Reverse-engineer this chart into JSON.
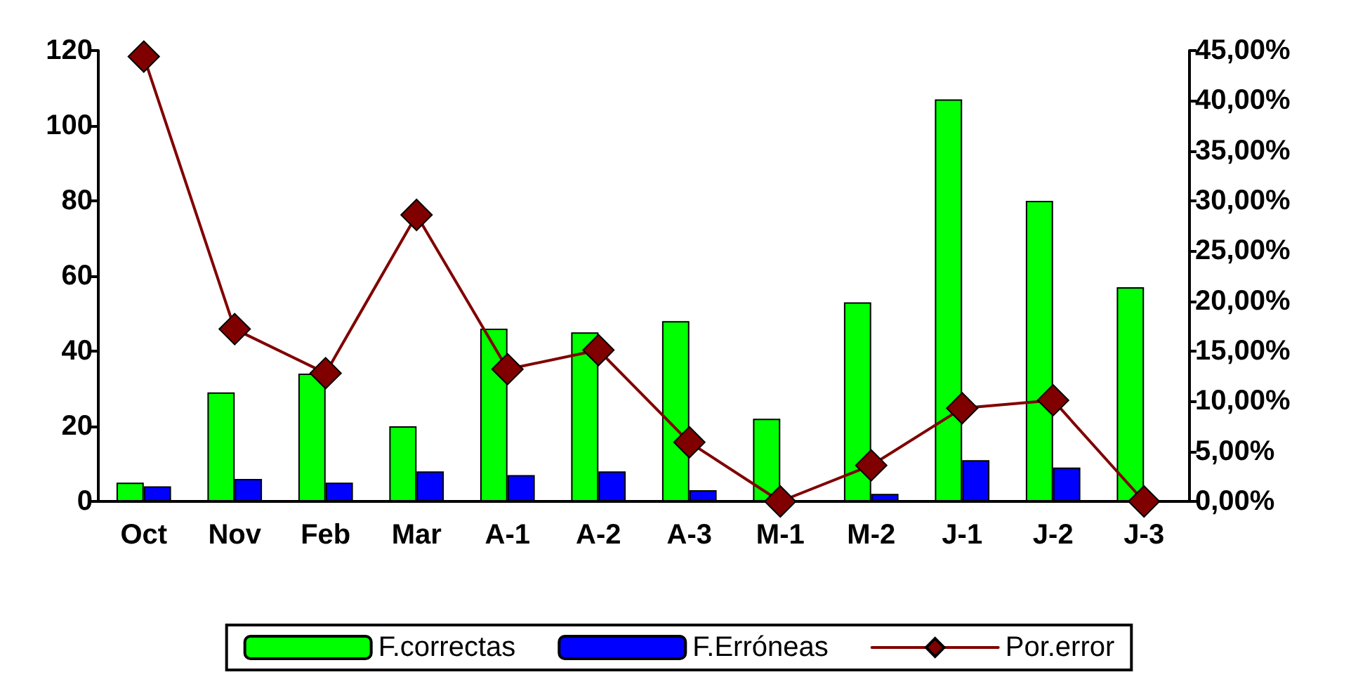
{
  "chart_data": {
    "type": "bar",
    "categories": [
      "Oct",
      "Nov",
      "Feb",
      "Mar",
      "A-1",
      "A-2",
      "A-3",
      "M-1",
      "M-2",
      "J-1",
      "J-2",
      "J-3"
    ],
    "series": [
      {
        "name": "F.correctas",
        "color": "#00ff00",
        "values": [
          5,
          29,
          34,
          20,
          46,
          45,
          48,
          22,
          53,
          107,
          80,
          57
        ]
      },
      {
        "name": "F.Erróneas",
        "color": "#0000ff",
        "values": [
          4,
          6,
          5,
          8,
          7,
          8,
          3,
          0,
          2,
          11,
          9,
          0
        ]
      },
      {
        "name": "Por.error",
        "color": "#800000",
        "type": "line",
        "axis": "y2",
        "marker": "diamond",
        "line_style": "solid",
        "values": [
          44.4,
          17.2,
          12.8,
          28.6,
          13.2,
          15.1,
          5.9,
          0,
          3.6,
          9.3,
          10.1,
          0
        ]
      }
    ],
    "ylim": [
      0,
      120
    ],
    "yticks": [
      0,
      20,
      40,
      60,
      80,
      100,
      120
    ],
    "y2lim": [
      0,
      45
    ],
    "y2ticks": [
      {
        "value": 0,
        "label": "0,00%"
      },
      {
        "value": 5,
        "label": "5,00%"
      },
      {
        "value": 10,
        "label": "10,00%"
      },
      {
        "value": 15,
        "label": "15,00%"
      },
      {
        "value": 20,
        "label": "20,00%"
      },
      {
        "value": 25,
        "label": "25,00%"
      },
      {
        "value": 30,
        "label": "30,00%"
      },
      {
        "value": 35,
        "label": "35,00%"
      },
      {
        "value": 40,
        "label": "40,00%"
      },
      {
        "value": 45,
        "label": "45,00%"
      }
    ],
    "grid": false,
    "legend": "bottom"
  }
}
